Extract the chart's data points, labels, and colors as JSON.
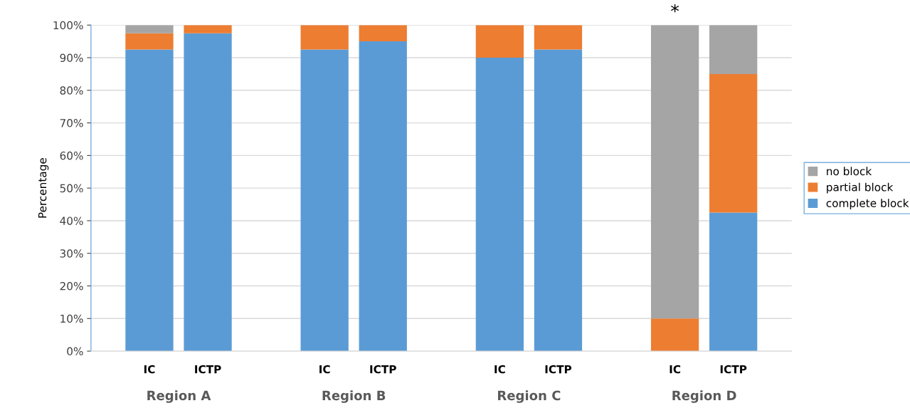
{
  "chart_data": {
    "type": "bar",
    "stacked": true,
    "ylabel": "Percentage",
    "categories": [
      "IC",
      "ICTP",
      "IC",
      "ICTP",
      "IC",
      "ICTP",
      "IC",
      "ICTP"
    ],
    "series": [
      {
        "name": "complete block",
        "color": "#5b9bd5",
        "values": [
          92.5,
          97.5,
          92.5,
          95,
          90,
          92.5,
          0,
          42.5
        ]
      },
      {
        "name": "partial block",
        "color": "#ed7d31",
        "values": [
          5,
          2.5,
          7.5,
          5,
          10,
          7.5,
          10,
          42.5
        ]
      },
      {
        "name": "no block",
        "color": "#a5a5a5",
        "values": [
          2.5,
          0,
          0,
          0,
          0,
          0,
          90,
          15
        ]
      }
    ],
    "ylim": [
      0,
      100
    ],
    "yticks": [
      {
        "value": 0,
        "label": "0%"
      },
      {
        "value": 10,
        "label": "10%"
      },
      {
        "value": 20,
        "label": "20%"
      },
      {
        "value": 30,
        "label": "30%"
      },
      {
        "value": 40,
        "label": "40%"
      },
      {
        "value": 50,
        "label": "50%"
      },
      {
        "value": 60,
        "label": "60%"
      },
      {
        "value": 70,
        "label": "70%"
      },
      {
        "value": 80,
        "label": "80%"
      },
      {
        "value": 90,
        "label": "90%"
      },
      {
        "value": 100,
        "label": "100%"
      }
    ],
    "grid": "y",
    "legend": "right",
    "annotations": [
      "Region A",
      "Region B",
      "Region C",
      "Region D",
      "*"
    ]
  }
}
